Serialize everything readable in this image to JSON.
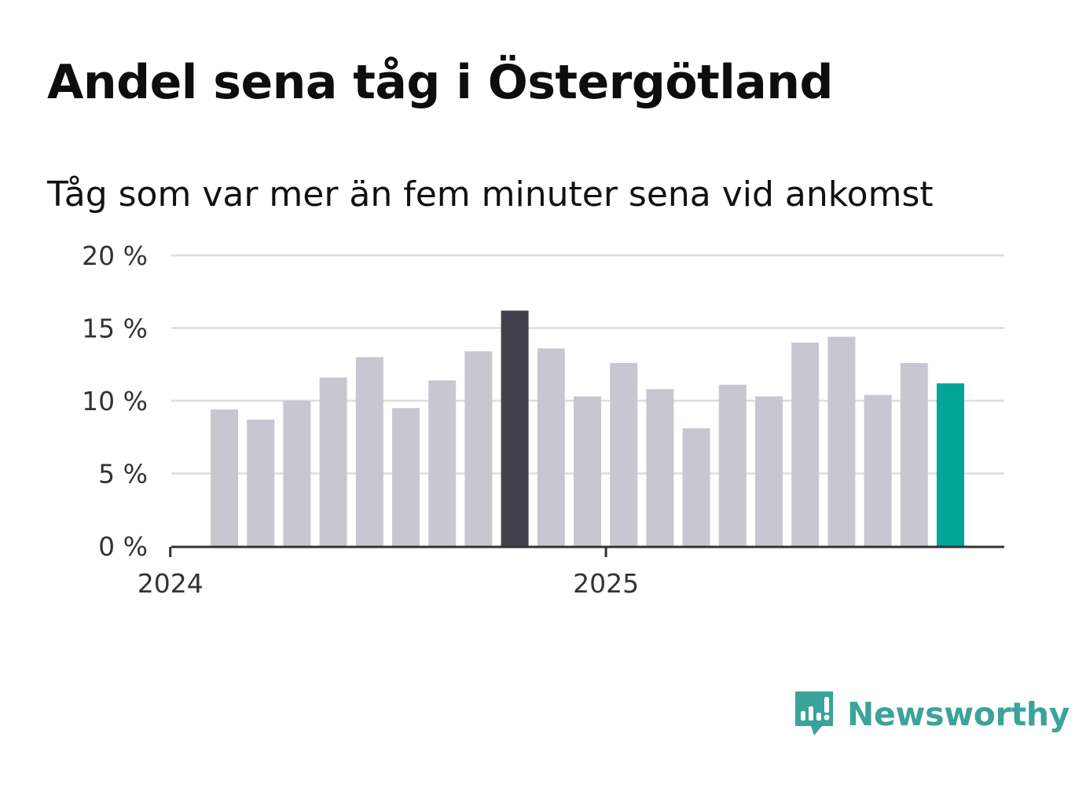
{
  "title": "Andel sena tåg i Östergötland",
  "subtitle": "Tåg som var mer än fem minuter sena vid ankomst",
  "brand": {
    "name": "Newsworthy"
  },
  "colors": {
    "bar_default": "#c8c6d1",
    "bar_highlight": "#42404c",
    "bar_latest": "#00a597",
    "grid": "#dddddd",
    "axis": "#333333",
    "brand": "#3aa39a"
  },
  "chart_data": {
    "type": "bar",
    "title": "Andel sena tåg i Östergötland",
    "xlabel": "",
    "ylabel": "",
    "ylim": [
      0,
      20
    ],
    "yticks": [
      0,
      5,
      10,
      15,
      20
    ],
    "ytick_labels": [
      "0 %",
      "5 %",
      "10 %",
      "15 %",
      "20 %"
    ],
    "grid": true,
    "categories": [
      "2024-02",
      "2024-03",
      "2024-04",
      "2024-05",
      "2024-06",
      "2024-07",
      "2024-08",
      "2024-09",
      "2024-10",
      "2024-11",
      "2024-12",
      "2025-01",
      "2025-02",
      "2025-03",
      "2025-04",
      "2025-05",
      "2025-06",
      "2025-07",
      "2025-08",
      "2025-09",
      "2025-10"
    ],
    "values": [
      9.4,
      8.7,
      10.0,
      11.6,
      13.0,
      9.5,
      11.4,
      13.4,
      16.2,
      13.6,
      10.3,
      12.6,
      10.8,
      8.1,
      11.1,
      10.3,
      14.0,
      14.4,
      10.4,
      12.6,
      11.2
    ],
    "highlight_index": 8,
    "latest_index": 20,
    "x_tick_labels": [
      {
        "label": "2024",
        "month": 1
      },
      {
        "label": "2025",
        "month": 13
      }
    ]
  }
}
